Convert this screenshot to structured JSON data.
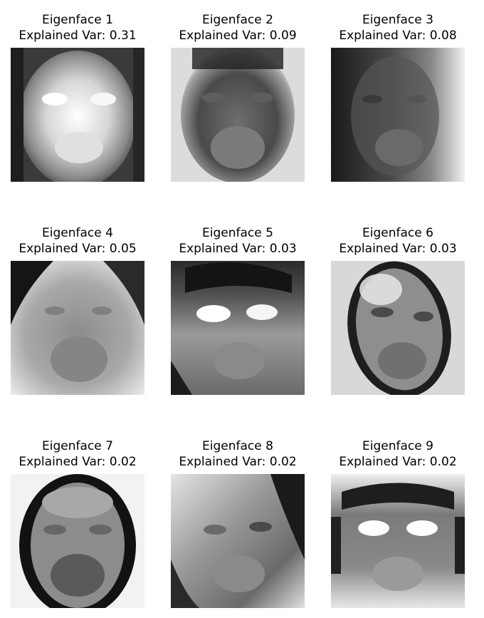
{
  "panels": [
    {
      "title": "Eigenface 1",
      "subtitle": "Explained Var: 0.31",
      "variant": "bright-face"
    },
    {
      "title": "Eigenface 2",
      "subtitle": "Explained Var: 0.09",
      "variant": "dark-top-light-sides"
    },
    {
      "title": "Eigenface 3",
      "subtitle": "Explained Var: 0.08",
      "variant": "dark-left-light-right"
    },
    {
      "title": "Eigenface 4",
      "subtitle": "Explained Var: 0.05",
      "variant": "soft-gray-dark-corners"
    },
    {
      "title": "Eigenface 5",
      "subtitle": "Explained Var: 0.03",
      "variant": "bright-eyes-dark-hair"
    },
    {
      "title": "Eigenface 6",
      "subtitle": "Explained Var: 0.03",
      "variant": "tilted-oval"
    },
    {
      "title": "Eigenface 7",
      "subtitle": "Explained Var: 0.02",
      "variant": "dark-outline-oval"
    },
    {
      "title": "Eigenface 8",
      "subtitle": "Explained Var: 0.02",
      "variant": "diagonal-shade"
    },
    {
      "title": "Eigenface 9",
      "subtitle": "Explained Var: 0.02",
      "variant": "bright-eyes-symmetric"
    }
  ]
}
